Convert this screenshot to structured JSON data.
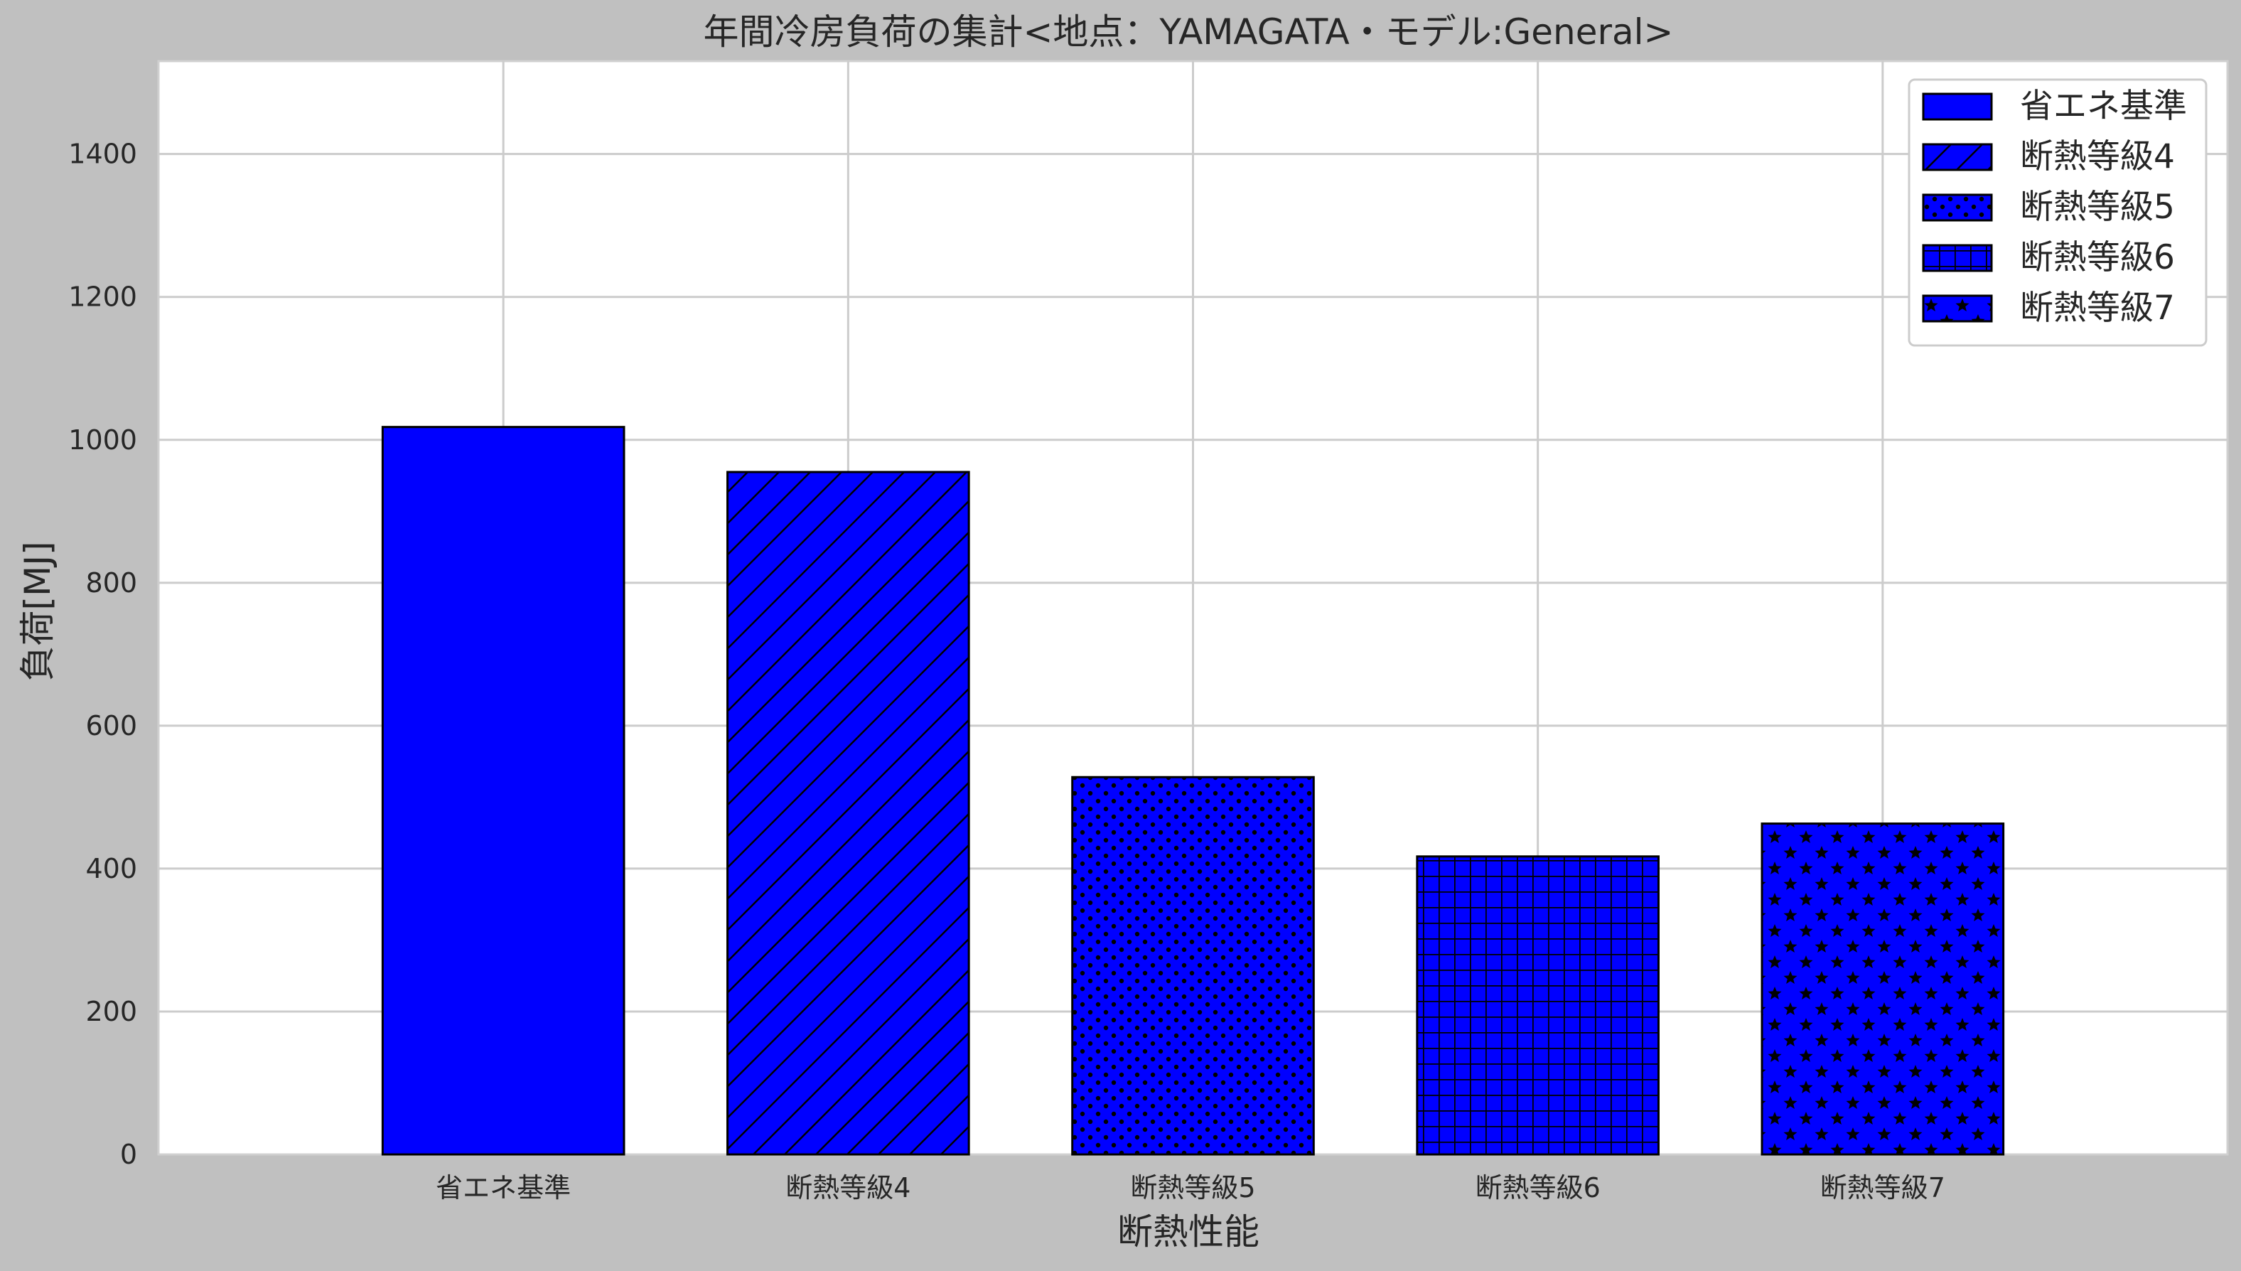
{
  "chart_data": {
    "type": "bar",
    "title": "年間冷房負荷の集計<地点：YAMAGATA・モデル:General>",
    "xlabel": "断熱性能",
    "ylabel": "負荷[MJ]",
    "categories": [
      "省エネ基準",
      "断熱等級4",
      "断熱等級5",
      "断熱等級6",
      "断熱等級7"
    ],
    "values": [
      1018,
      955,
      528,
      417,
      463
    ],
    "patterns": [
      "solid",
      "diagonal",
      "dots",
      "grid",
      "stars"
    ],
    "ylim": [
      0,
      1530
    ],
    "yticks": [
      0,
      200,
      400,
      600,
      800,
      1000,
      1200,
      1400
    ],
    "grid": true,
    "legend_position": "top-right",
    "bar_color": "#0000ff",
    "edge_color": "#000000",
    "background": "#ffffff",
    "figure_background": "#c0c0c0",
    "grid_color": "#cccccc"
  }
}
